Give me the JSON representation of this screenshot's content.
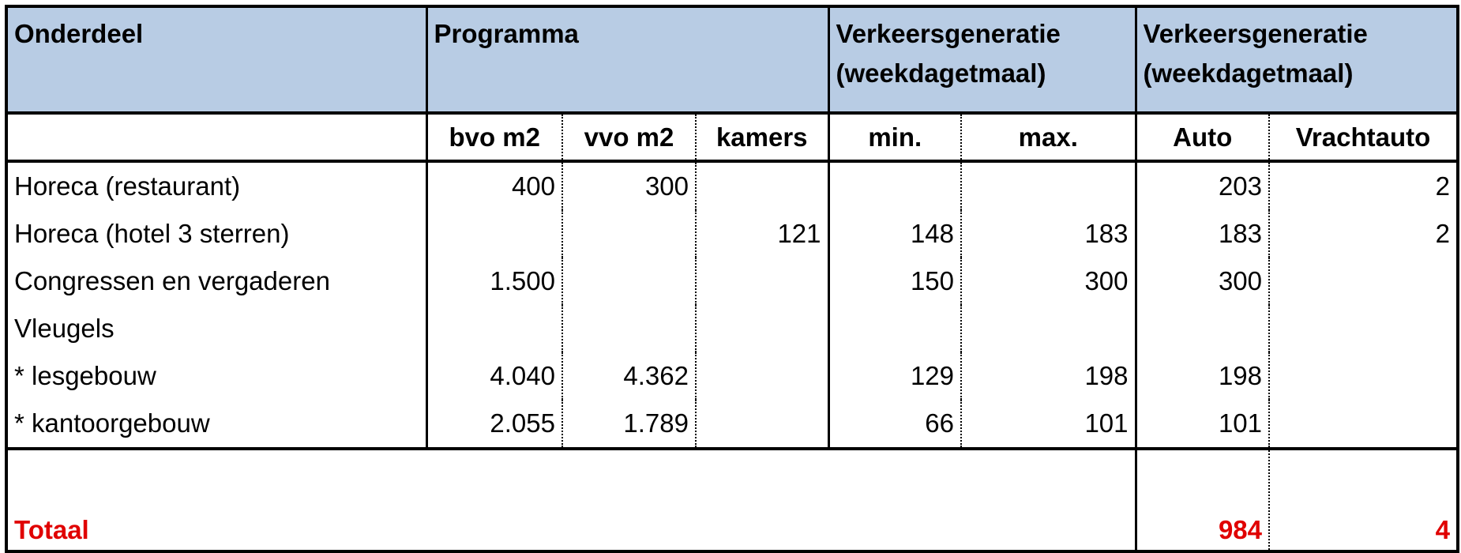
{
  "header": {
    "cells": [
      {
        "lines": [
          "Onderdeel"
        ],
        "span": 1
      },
      {
        "lines": [
          "Programma"
        ],
        "span": 3
      },
      {
        "lines": [
          "Verkeersgeneratie",
          "(weekdagetmaal)"
        ],
        "span": 2
      },
      {
        "lines": [
          "Verkeersgeneratie",
          "(weekdagetmaal)"
        ],
        "span": 2
      }
    ]
  },
  "subheader": {
    "cells": [
      null,
      "bvo m2",
      "vvo m2",
      "kamers",
      "min.",
      "max.",
      "Auto",
      "Vrachtauto"
    ]
  },
  "table": {
    "rows": [
      {
        "cells": [
          "Horeca (restaurant)",
          "400",
          "300",
          null,
          null,
          null,
          "203",
          "2"
        ]
      },
      {
        "cells": [
          "Horeca (hotel 3 sterren)",
          null,
          null,
          "121",
          "148",
          "183",
          "183",
          "2"
        ]
      },
      {
        "cells": [
          "Congressen en vergaderen",
          "1.500",
          null,
          null,
          "150",
          "300",
          "300",
          null
        ]
      },
      {
        "cells": [
          "Vleugels",
          null,
          null,
          null,
          null,
          null,
          null,
          null
        ]
      },
      {
        "cells": [
          "* lesgebouw",
          "4.040",
          "4.362",
          null,
          "129",
          "198",
          "198",
          null
        ]
      },
      {
        "cells": [
          "* kantoorgebouw",
          "2.055",
          "1.789",
          null,
          "66",
          "101",
          "101",
          null
        ]
      }
    ]
  },
  "total": {
    "label": "Totaal",
    "auto": "984",
    "vrachtauto": "4"
  }
}
